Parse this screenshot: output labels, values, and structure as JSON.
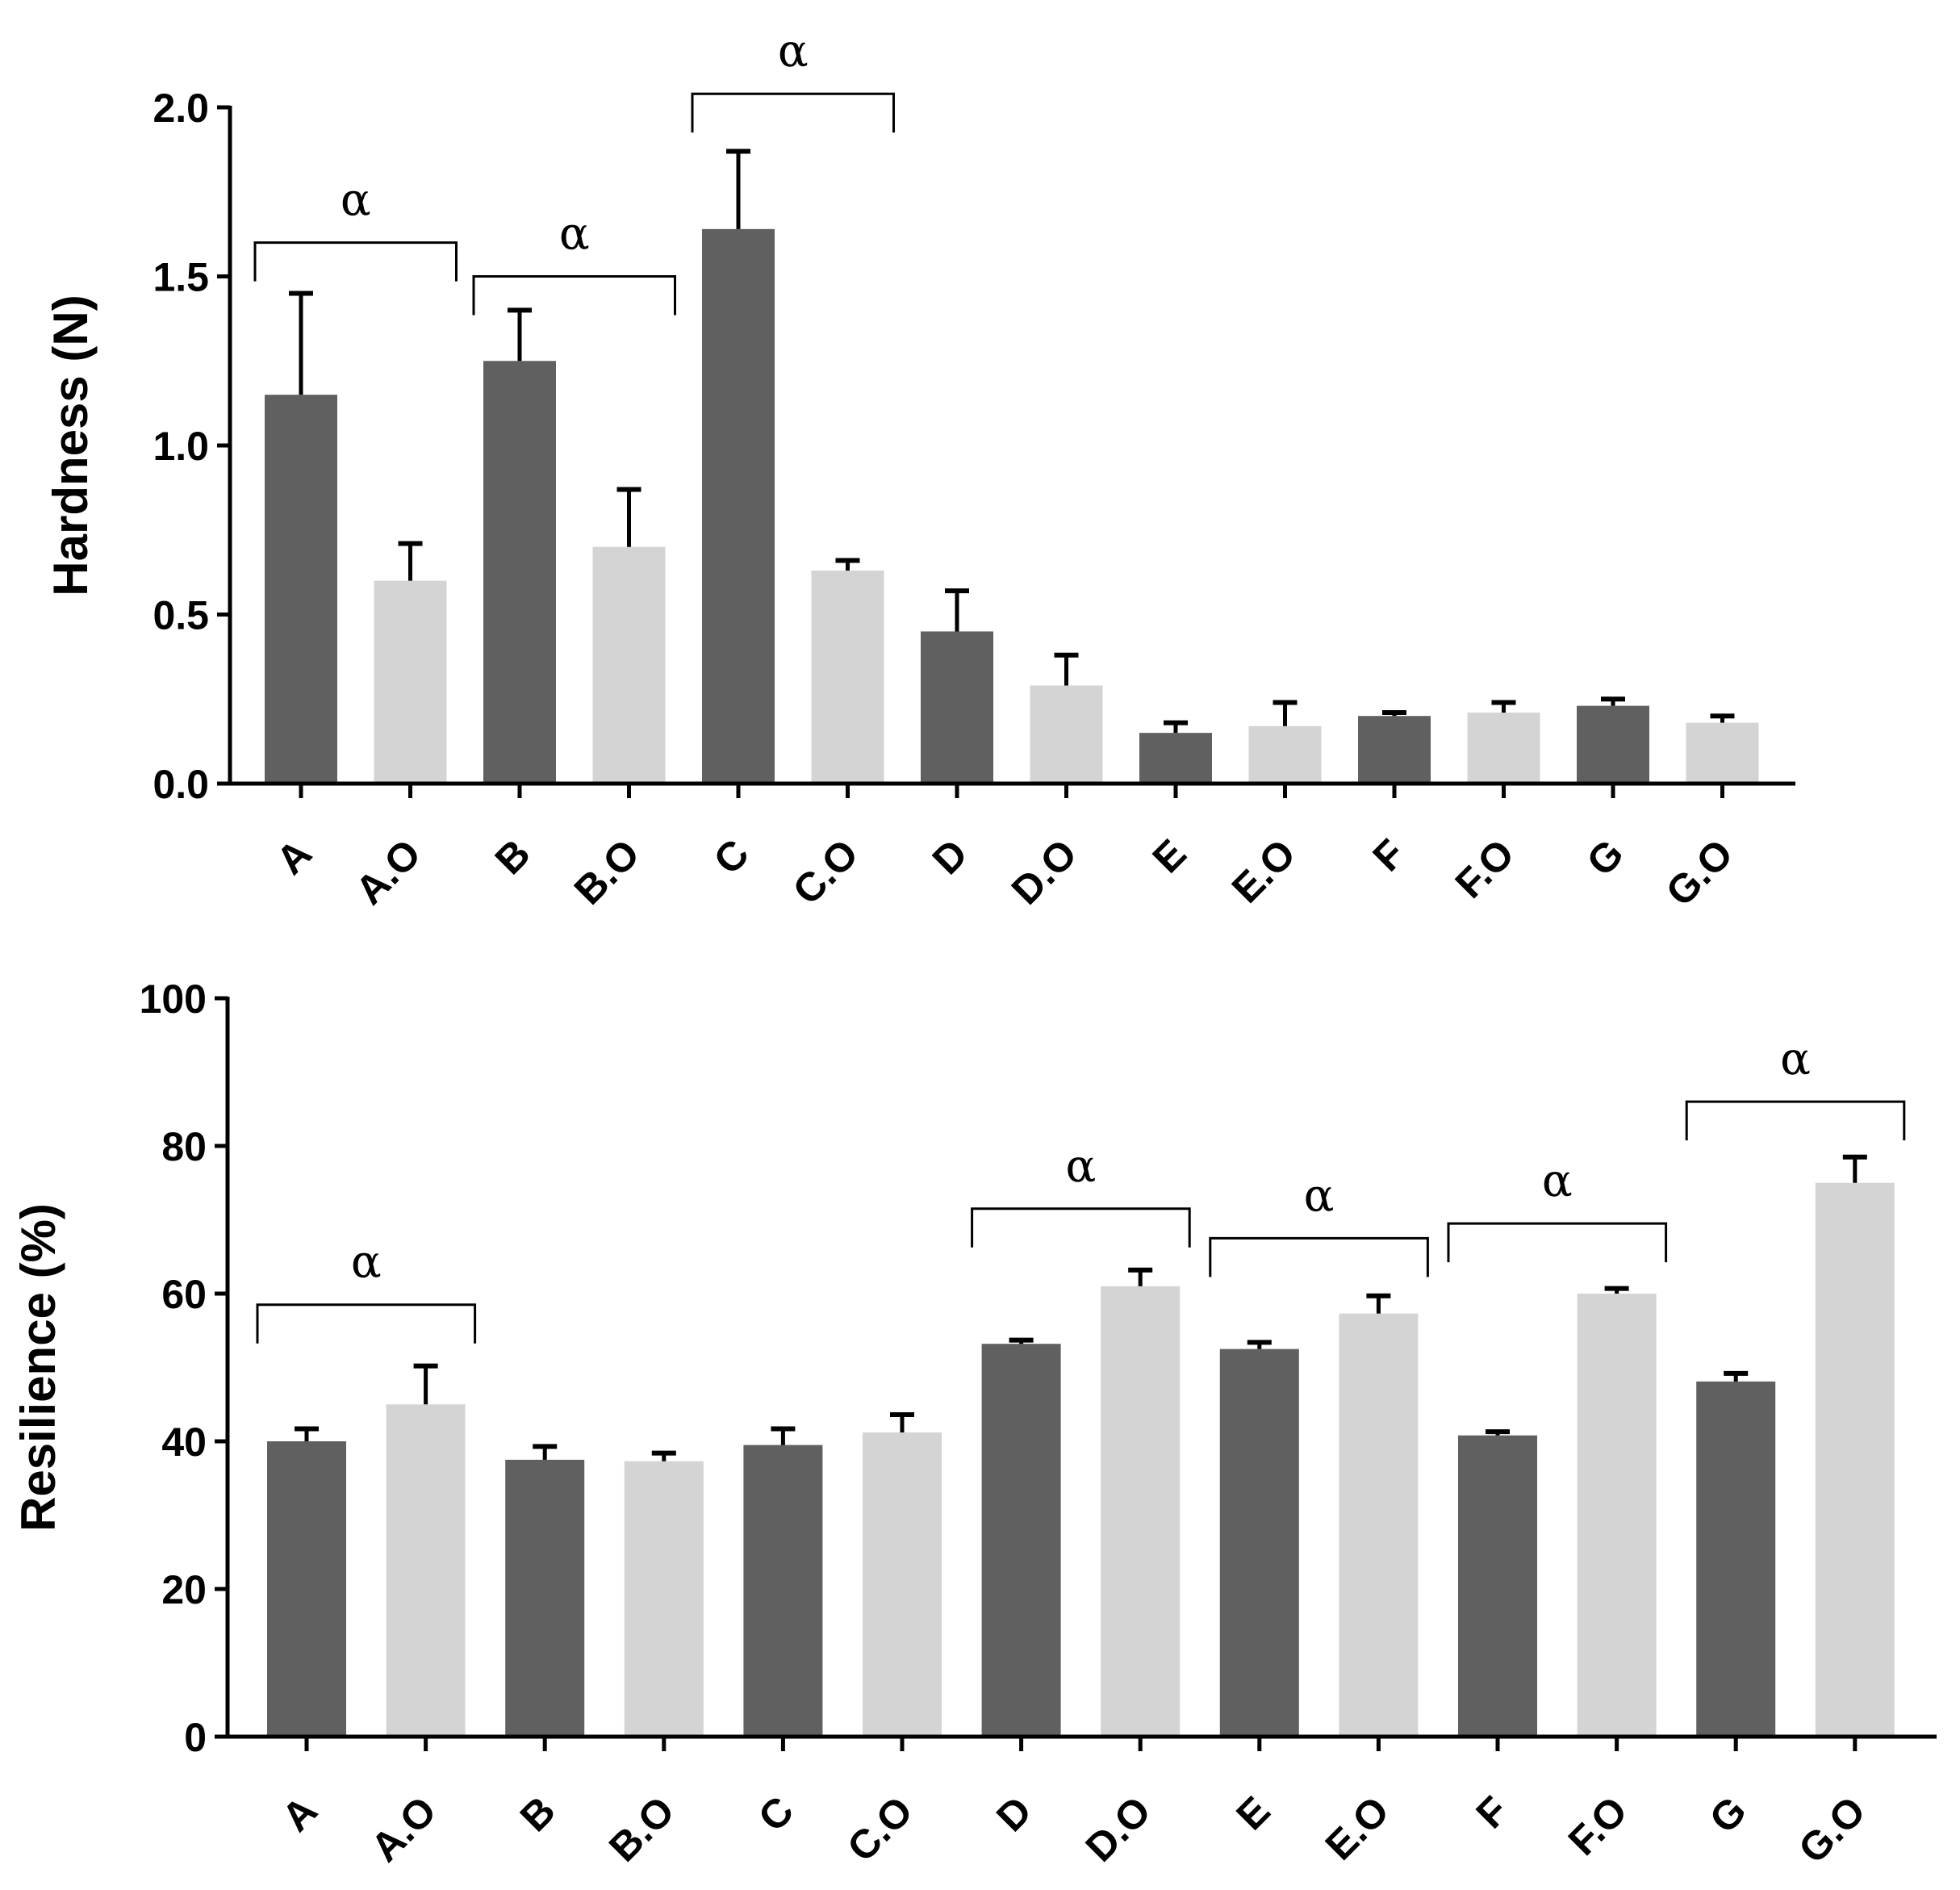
{
  "colors": {
    "dark_bar": "#606060",
    "light_bar": "#d4d4d4",
    "axis": "#000000"
  },
  "chart_data": [
    {
      "type": "bar",
      "categories": [
        "A",
        "A.O",
        "B",
        "B.O",
        "C",
        "C.O",
        "D",
        "D.O",
        "E",
        "E.O",
        "F",
        "F.O",
        "G",
        "G.O"
      ],
      "values": [
        1.15,
        0.6,
        1.25,
        0.7,
        1.64,
        0.63,
        0.45,
        0.29,
        0.15,
        0.17,
        0.2,
        0.21,
        0.23,
        0.18
      ],
      "errors": [
        0.3,
        0.11,
        0.15,
        0.17,
        0.23,
        0.03,
        0.12,
        0.09,
        0.03,
        0.07,
        0.01,
        0.03,
        0.02,
        0.02
      ],
      "bar_shades": [
        "dark",
        "light",
        "dark",
        "light",
        "dark",
        "light",
        "dark",
        "light",
        "dark",
        "light",
        "dark",
        "light",
        "dark",
        "light"
      ],
      "xlabel": "",
      "ylabel": "Hardness (N)",
      "ylim": [
        0,
        2.0
      ],
      "yticks": [
        0.0,
        0.5,
        1.0,
        1.5,
        2.0
      ],
      "ytick_labels": [
        "0.0",
        "0.5",
        "1.0",
        "1.5",
        "2.0"
      ],
      "annotations": [
        {
          "text": "α",
          "from": "A",
          "to": "A.O",
          "level": 1.6
        },
        {
          "text": "α",
          "from": "B",
          "to": "B.O",
          "level": 1.5
        },
        {
          "text": "α",
          "from": "C",
          "to": "C.O",
          "level": 2.04
        }
      ]
    },
    {
      "type": "bar",
      "categories": [
        "A",
        "A.O",
        "B",
        "B.O",
        "C",
        "C.O",
        "D",
        "D.O",
        "E",
        "E.O",
        "F",
        "F.O",
        "G",
        "G.O"
      ],
      "values": [
        40.0,
        45.0,
        37.5,
        37.3,
        39.5,
        41.2,
        53.2,
        61.0,
        52.5,
        57.3,
        40.8,
        60.0,
        48.1,
        75.0
      ],
      "errors": [
        1.7,
        5.2,
        1.8,
        1.1,
        2.2,
        2.4,
        0.5,
        2.2,
        0.9,
        2.4,
        0.5,
        0.7,
        1.1,
        3.5
      ],
      "bar_shades": [
        "dark",
        "light",
        "dark",
        "light",
        "dark",
        "light",
        "dark",
        "light",
        "dark",
        "light",
        "dark",
        "light",
        "dark",
        "light"
      ],
      "xlabel": "",
      "ylabel": "Resilience (%)",
      "ylim": [
        0,
        100
      ],
      "yticks": [
        0,
        20,
        40,
        60,
        80,
        100
      ],
      "ytick_labels": [
        "0",
        "20",
        "40",
        "60",
        "80",
        "100"
      ],
      "annotations": [
        {
          "text": "α",
          "from": "A",
          "to": "A.O",
          "level": 58.5
        },
        {
          "text": "α",
          "from": "D",
          "to": "D.O",
          "level": 71.5
        },
        {
          "text": "α",
          "from": "E",
          "to": "E.O",
          "level": 67.5
        },
        {
          "text": "α",
          "from": "F",
          "to": "F.O",
          "level": 69.5
        },
        {
          "text": "α",
          "from": "G",
          "to": "G.O",
          "level": 86.0
        }
      ]
    }
  ]
}
